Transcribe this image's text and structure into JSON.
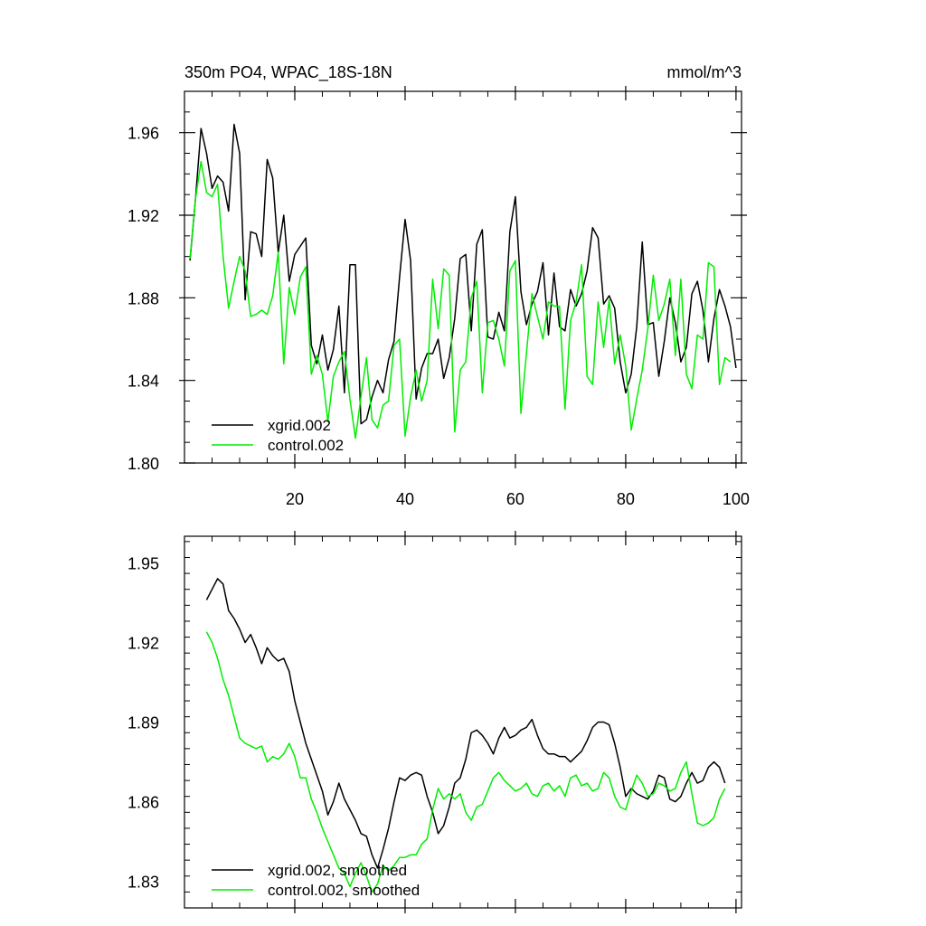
{
  "chart_data": [
    {
      "type": "line",
      "title": "350m PO4, WPAC_18S-18N",
      "units_label": "mmol/m^3",
      "xlabel": "",
      "ylabel": "",
      "xlim": [
        0,
        101
      ],
      "ylim": [
        1.8,
        1.98
      ],
      "xticks": [
        20,
        40,
        60,
        80,
        100
      ],
      "xtick_labels": [
        "20",
        "40",
        "60",
        "80",
        "100"
      ],
      "yticks": [
        1.8,
        1.84,
        1.88,
        1.92,
        1.96
      ],
      "ytick_labels": [
        "1.80",
        "1.84",
        "1.88",
        "1.92",
        "1.96"
      ],
      "grid": false,
      "legend_position": "bottom-left",
      "series": [
        {
          "name": "xgrid.002",
          "color": "#000000",
          "x_start": 1,
          "values": [
            1.898,
            1.928,
            1.962,
            1.95,
            1.933,
            1.939,
            1.936,
            1.922,
            1.964,
            1.95,
            1.879,
            1.912,
            1.911,
            1.9,
            1.947,
            1.938,
            1.902,
            1.92,
            1.888,
            1.901,
            1.905,
            1.909,
            1.857,
            1.848,
            1.862,
            1.845,
            1.855,
            1.876,
            1.834,
            1.896,
            1.896,
            1.819,
            1.821,
            1.832,
            1.84,
            1.834,
            1.85,
            1.859,
            1.89,
            1.918,
            1.898,
            1.831,
            1.846,
            1.853,
            1.853,
            1.86,
            1.841,
            1.851,
            1.87,
            1.899,
            1.901,
            1.864,
            1.906,
            1.913,
            1.861,
            1.86,
            1.873,
            1.864,
            1.912,
            1.929,
            1.883,
            1.867,
            1.877,
            1.883,
            1.897,
            1.862,
            1.892,
            1.866,
            1.864,
            1.884,
            1.876,
            1.882,
            1.893,
            1.914,
            1.909,
            1.877,
            1.881,
            1.875,
            1.849,
            1.834,
            1.843,
            1.866,
            1.907,
            1.867,
            1.868,
            1.842,
            1.859,
            1.88,
            1.868,
            1.849,
            1.856,
            1.882,
            1.888,
            1.874,
            1.849,
            1.87,
            1.884,
            1.876,
            1.866,
            1.846
          ]
        },
        {
          "name": "control.002",
          "color": "#00ee00",
          "x_start": 1,
          "values": [
            1.899,
            1.928,
            1.946,
            1.931,
            1.929,
            1.935,
            1.9,
            1.875,
            1.888,
            1.9,
            1.893,
            1.871,
            1.872,
            1.874,
            1.872,
            1.881,
            1.902,
            1.848,
            1.885,
            1.872,
            1.89,
            1.895,
            1.843,
            1.852,
            1.843,
            1.82,
            1.842,
            1.849,
            1.854,
            1.831,
            1.812,
            1.832,
            1.851,
            1.821,
            1.817,
            1.828,
            1.83,
            1.857,
            1.86,
            1.813,
            1.832,
            1.845,
            1.83,
            1.84,
            1.889,
            1.865,
            1.894,
            1.891,
            1.815,
            1.845,
            1.849,
            1.88,
            1.888,
            1.834,
            1.868,
            1.869,
            1.86,
            1.847,
            1.893,
            1.898,
            1.824,
            1.853,
            1.882,
            1.871,
            1.86,
            1.878,
            1.876,
            1.876,
            1.826,
            1.869,
            1.878,
            1.896,
            1.842,
            1.838,
            1.878,
            1.856,
            1.879,
            1.848,
            1.862,
            1.847,
            1.816,
            1.831,
            1.845,
            1.865,
            1.891,
            1.869,
            1.877,
            1.889,
            1.852,
            1.889,
            1.843,
            1.836,
            1.862,
            1.86,
            1.897,
            1.895,
            1.838,
            1.851,
            1.849
          ]
        }
      ]
    },
    {
      "type": "line",
      "title": "",
      "xlabel": "",
      "ylabel": "",
      "xlim": [
        0,
        101
      ],
      "ylim": [
        1.82,
        1.96
      ],
      "xticks": [
        20,
        40,
        60,
        80,
        100
      ],
      "xtick_labels": [],
      "yticks": [
        1.83,
        1.86,
        1.89,
        1.92,
        1.95
      ],
      "ytick_labels": [
        "1.83",
        "1.86",
        "1.89",
        "1.92",
        "1.95"
      ],
      "grid": false,
      "legend_position": "bottom-left",
      "series": [
        {
          "name": "xgrid.002, smoothed",
          "color": "#000000",
          "x_start": 4,
          "values": [
            1.936,
            1.94,
            1.944,
            1.942,
            1.932,
            1.929,
            1.925,
            1.92,
            1.923,
            1.918,
            1.912,
            1.918,
            1.915,
            1.913,
            1.914,
            1.909,
            1.898,
            1.89,
            1.882,
            1.876,
            1.87,
            1.864,
            1.855,
            1.86,
            1.867,
            1.861,
            1.857,
            1.853,
            1.848,
            1.847,
            1.84,
            1.835,
            1.842,
            1.85,
            1.86,
            1.869,
            1.868,
            1.87,
            1.871,
            1.87,
            1.862,
            1.856,
            1.848,
            1.851,
            1.858,
            1.867,
            1.869,
            1.876,
            1.886,
            1.887,
            1.885,
            1.882,
            1.878,
            1.884,
            1.888,
            1.884,
            1.885,
            1.887,
            1.888,
            1.891,
            1.885,
            1.88,
            1.878,
            1.878,
            1.877,
            1.877,
            1.875,
            1.877,
            1.879,
            1.883,
            1.888,
            1.89,
            1.89,
            1.889,
            1.882,
            1.873,
            1.862,
            1.865,
            1.863,
            1.862,
            1.861,
            1.864,
            1.87,
            1.869,
            1.861,
            1.86,
            1.862,
            1.867,
            1.871,
            1.867,
            1.868,
            1.873,
            1.875,
            1.873,
            1.867
          ]
        },
        {
          "name": "control.002, smoothed",
          "color": "#00ee00",
          "x_start": 4,
          "values": [
            1.924,
            1.92,
            1.914,
            1.906,
            1.9,
            1.892,
            1.884,
            1.882,
            1.881,
            1.88,
            1.881,
            1.875,
            1.877,
            1.876,
            1.878,
            1.882,
            1.877,
            1.869,
            1.869,
            1.861,
            1.856,
            1.85,
            1.845,
            1.84,
            1.835,
            1.833,
            1.828,
            1.833,
            1.837,
            1.832,
            1.826,
            1.829,
            1.836,
            1.834,
            1.836,
            1.839,
            1.839,
            1.84,
            1.84,
            1.844,
            1.846,
            1.857,
            1.865,
            1.861,
            1.863,
            1.861,
            1.863,
            1.856,
            1.853,
            1.858,
            1.859,
            1.864,
            1.869,
            1.871,
            1.868,
            1.866,
            1.864,
            1.865,
            1.867,
            1.863,
            1.862,
            1.866,
            1.867,
            1.864,
            1.866,
            1.862,
            1.869,
            1.87,
            1.866,
            1.867,
            1.864,
            1.865,
            1.871,
            1.869,
            1.862,
            1.858,
            1.857,
            1.864,
            1.87,
            1.867,
            1.862,
            1.863,
            1.867,
            1.866,
            1.864,
            1.865,
            1.871,
            1.875,
            1.863,
            1.852,
            1.851,
            1.852,
            1.854,
            1.861,
            1.865
          ]
        }
      ]
    }
  ]
}
